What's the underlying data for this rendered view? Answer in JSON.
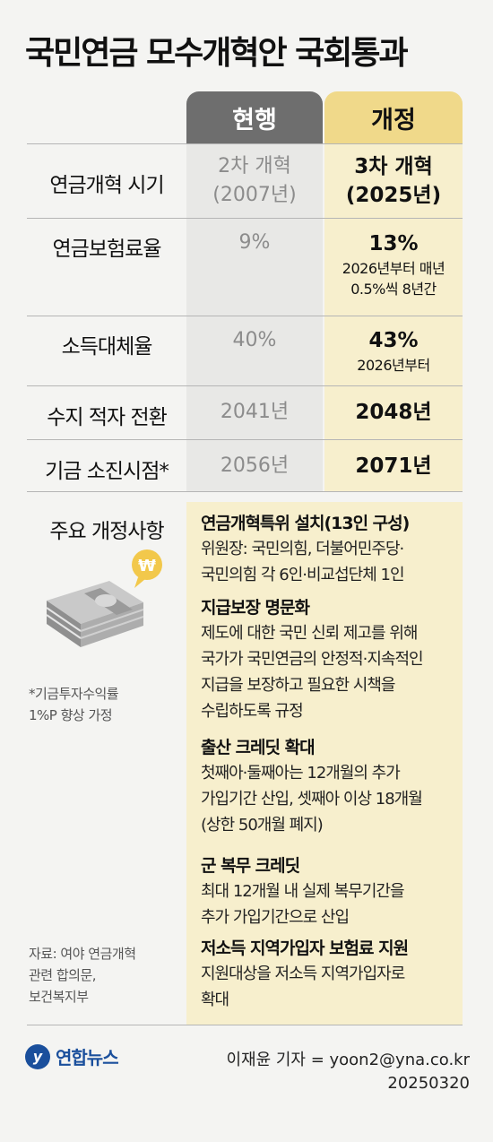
{
  "title": "국민연금 모수개혁안 국회통과",
  "columns": {
    "current": "현행",
    "revised": "개정"
  },
  "rows": [
    {
      "label": "연금개혁 시기",
      "current": [
        "2차 개혁",
        "(2007년)"
      ],
      "revised_main": [
        "3차 개혁",
        "(2025년)"
      ],
      "revised_sub": []
    },
    {
      "label": "연금보험료율",
      "current": [
        "9%"
      ],
      "revised_main": [
        "13%"
      ],
      "revised_sub": [
        "2026년부터 매년",
        "0.5%씩 8년간"
      ]
    },
    {
      "label": "소득대체율",
      "current": [
        "40%"
      ],
      "revised_main": [
        "43%"
      ],
      "revised_sub": [
        "2026년부터"
      ]
    },
    {
      "label": "수지 적자 전환",
      "current": [
        "2041년"
      ],
      "revised_main": [
        "2048년"
      ],
      "revised_sub": []
    },
    {
      "label": "기금 소진시점*",
      "current": [
        "2056년"
      ],
      "revised_main": [
        "2071년"
      ],
      "revised_sub": []
    }
  ],
  "main_changes": {
    "label": "주요 개정사항",
    "coin_symbol": "₩",
    "sections": [
      {
        "heading": "연금개혁특위 설치(13인 구성)",
        "lines": [
          "위원장: 국민의힘, 더불어민주당·",
          "국민의힘 각 6인·비교섭단체 1인"
        ]
      },
      {
        "heading": "지급보장 명문화",
        "lines": [
          "제도에 대한 국민 신뢰 제고를 위해",
          "국가가 국민연금의 안정적·지속적인",
          "지급을 보장하고 필요한 시책을",
          "수립하도록 규정"
        ]
      },
      {
        "heading": "출산 크레딧 확대",
        "lines": [
          "첫째아·둘째아는 12개월의 추가",
          "가입기간 산입, 셋째아 이상 18개월",
          "(상한 50개월 폐지)"
        ]
      },
      {
        "heading": "군 복무 크레딧",
        "lines": [
          "최대 12개월 내 실제 복무기간을",
          "추가 가입기간으로 산입"
        ]
      },
      {
        "heading": "저소득 지역가입자 보험료 지원",
        "lines": [
          "지원대상을 저소득 지역가입자로",
          "확대"
        ]
      }
    ]
  },
  "footnote": [
    "*기금투자수익률",
    "1%P 향상 가정"
  ],
  "source": [
    "자료: 여야 연금개혁",
    "관련 합의문,",
    "보건복지부"
  ],
  "logo": {
    "mark": "y",
    "text": "연합뉴스"
  },
  "credit": [
    "이재윤 기자 = yoon2@yna.co.kr",
    "20250320"
  ],
  "colors": {
    "current_header": "#6e6e6e",
    "revised_header": "#f0d98a",
    "revised_bg": "#f7efcd",
    "current_bg": "#e8e8e6",
    "brand": "#1a4f9c"
  }
}
